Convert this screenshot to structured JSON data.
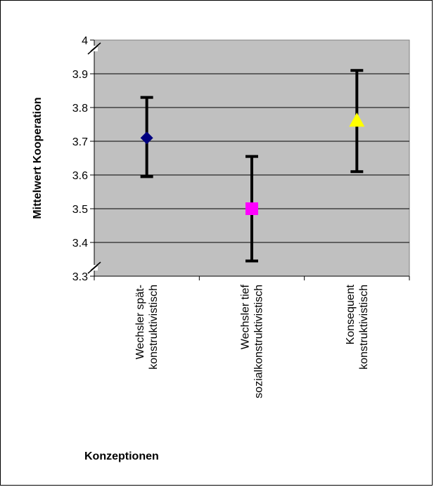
{
  "chart_data": {
    "type": "scatter",
    "title": "",
    "xlabel": "Konzeptionen",
    "ylabel": "Mittelwert Kooperation",
    "ylim": [
      3.3,
      4.0
    ],
    "yticks": [
      "3.3",
      "3.4",
      "3.5",
      "3.6",
      "3.7",
      "3.8",
      "3.9",
      "4"
    ],
    "grid": true,
    "legend": "none",
    "plot_background": "#c0c0c0",
    "categories": [
      [
        "Wechsler spät-",
        "konstruktivistisch"
      ],
      [
        "Wechsler tief",
        "sozialkonstruktivistisch"
      ],
      [
        "Konsequent",
        "konstruktivistisch"
      ]
    ],
    "points": [
      {
        "mean": 3.71,
        "lower": 3.595,
        "upper": 3.83,
        "marker": "diamond",
        "color": "#000080"
      },
      {
        "mean": 3.5,
        "lower": 3.345,
        "upper": 3.655,
        "marker": "square",
        "color": "#ff00ff"
      },
      {
        "mean": 3.76,
        "lower": 3.61,
        "upper": 3.91,
        "marker": "triangle",
        "color": "#ffff00"
      }
    ]
  }
}
